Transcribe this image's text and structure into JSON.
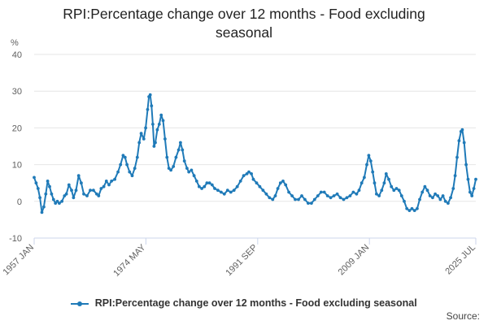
{
  "title": "RPI:Percentage change over 12 months - Food excluding seasonal",
  "source_label": "Source:",
  "colors": {
    "series": "#1f7ab8",
    "grid": "#e6e6e6",
    "axis": "#ccd6eb",
    "text": "#606060"
  },
  "chart_data": {
    "type": "line",
    "title": "RPI:Percentage change over 12 months - Food excluding seasonal",
    "ylabel": "%",
    "xlabel": "",
    "ylim": [
      -10,
      40
    ],
    "yticks": [
      -10,
      0,
      10,
      20,
      30,
      40
    ],
    "xlim": [
      1957.0,
      2025.5
    ],
    "xticks": [
      {
        "label": "1957 JAN",
        "value": 1957.0
      },
      {
        "label": "1974 MAY",
        "value": 1974.33
      },
      {
        "label": "1991 SEP",
        "value": 1991.67
      },
      {
        "label": "2009 JAN",
        "value": 2009.0
      },
      {
        "label": "2025 JUL",
        "value": 2025.5
      }
    ],
    "grid": true,
    "legend": "bottom",
    "series": [
      {
        "name": "RPI:Percentage change over 12 months - Food excluding seasonal",
        "color": "#1f7ab8",
        "points": [
          [
            1957.0,
            6.5
          ],
          [
            1957.3,
            5.0
          ],
          [
            1957.6,
            3.5
          ],
          [
            1957.9,
            1.0
          ],
          [
            1958.2,
            -3.0
          ],
          [
            1958.5,
            -1.5
          ],
          [
            1958.8,
            2.0
          ],
          [
            1959.1,
            5.5
          ],
          [
            1959.4,
            4.0
          ],
          [
            1959.7,
            2.0
          ],
          [
            1960.0,
            0.5
          ],
          [
            1960.3,
            -0.5
          ],
          [
            1960.6,
            0.0
          ],
          [
            1960.9,
            -0.5
          ],
          [
            1961.3,
            0.0
          ],
          [
            1961.7,
            1.5
          ],
          [
            1962.0,
            2.0
          ],
          [
            1962.4,
            4.5
          ],
          [
            1962.8,
            3.0
          ],
          [
            1963.1,
            1.0
          ],
          [
            1963.5,
            3.0
          ],
          [
            1963.9,
            7.0
          ],
          [
            1964.3,
            5.0
          ],
          [
            1964.7,
            2.0
          ],
          [
            1965.2,
            1.5
          ],
          [
            1965.7,
            3.0
          ],
          [
            1966.2,
            3.0
          ],
          [
            1966.7,
            2.0
          ],
          [
            1967.0,
            1.5
          ],
          [
            1967.4,
            3.5
          ],
          [
            1967.8,
            4.0
          ],
          [
            1968.2,
            5.5
          ],
          [
            1968.6,
            4.5
          ],
          [
            1969.0,
            5.5
          ],
          [
            1969.5,
            6.0
          ],
          [
            1970.0,
            8.0
          ],
          [
            1970.4,
            10.0
          ],
          [
            1970.8,
            12.5
          ],
          [
            1971.1,
            12.0
          ],
          [
            1971.4,
            10.0
          ],
          [
            1971.8,
            8.0
          ],
          [
            1972.2,
            7.0
          ],
          [
            1972.6,
            9.0
          ],
          [
            1973.0,
            12.0
          ],
          [
            1973.3,
            16.0
          ],
          [
            1973.6,
            18.5
          ],
          [
            1974.0,
            17.0
          ],
          [
            1974.3,
            20.0
          ],
          [
            1974.6,
            25.0
          ],
          [
            1974.8,
            28.5
          ],
          [
            1975.0,
            29.0
          ],
          [
            1975.2,
            26.0
          ],
          [
            1975.4,
            21.0
          ],
          [
            1975.6,
            15.0
          ],
          [
            1975.8,
            16.0
          ],
          [
            1976.1,
            19.5
          ],
          [
            1976.4,
            21.0
          ],
          [
            1976.7,
            23.5
          ],
          [
            1977.0,
            22.0
          ],
          [
            1977.3,
            17.0
          ],
          [
            1977.6,
            12.0
          ],
          [
            1977.9,
            9.0
          ],
          [
            1978.2,
            8.5
          ],
          [
            1978.6,
            9.5
          ],
          [
            1979.0,
            12.0
          ],
          [
            1979.4,
            14.0
          ],
          [
            1979.7,
            16.0
          ],
          [
            1980.0,
            14.0
          ],
          [
            1980.3,
            11.0
          ],
          [
            1980.7,
            9.0
          ],
          [
            1981.0,
            8.0
          ],
          [
            1981.4,
            8.5
          ],
          [
            1981.8,
            7.0
          ],
          [
            1982.2,
            5.5
          ],
          [
            1982.6,
            4.0
          ],
          [
            1983.0,
            3.5
          ],
          [
            1983.4,
            4.0
          ],
          [
            1983.8,
            5.0
          ],
          [
            1984.2,
            5.0
          ],
          [
            1984.6,
            4.5
          ],
          [
            1985.0,
            3.5
          ],
          [
            1985.5,
            3.0
          ],
          [
            1986.0,
            2.5
          ],
          [
            1986.5,
            2.0
          ],
          [
            1987.0,
            3.0
          ],
          [
            1987.5,
            2.5
          ],
          [
            1988.0,
            3.0
          ],
          [
            1988.5,
            4.0
          ],
          [
            1989.0,
            5.5
          ],
          [
            1989.5,
            7.0
          ],
          [
            1990.0,
            7.5
          ],
          [
            1990.3,
            8.0
          ],
          [
            1990.7,
            7.5
          ],
          [
            1991.0,
            6.0
          ],
          [
            1991.5,
            5.0
          ],
          [
            1992.0,
            4.0
          ],
          [
            1992.5,
            3.0
          ],
          [
            1993.0,
            2.0
          ],
          [
            1993.5,
            1.0
          ],
          [
            1994.0,
            0.5
          ],
          [
            1994.4,
            1.5
          ],
          [
            1994.8,
            3.5
          ],
          [
            1995.2,
            5.0
          ],
          [
            1995.6,
            5.5
          ],
          [
            1996.0,
            4.5
          ],
          [
            1996.5,
            2.5
          ],
          [
            1997.0,
            1.5
          ],
          [
            1997.5,
            0.5
          ],
          [
            1998.0,
            0.5
          ],
          [
            1998.5,
            1.5
          ],
          [
            1999.0,
            0.5
          ],
          [
            1999.5,
            -0.5
          ],
          [
            2000.0,
            -0.5
          ],
          [
            2000.5,
            0.5
          ],
          [
            2001.0,
            1.5
          ],
          [
            2001.5,
            2.5
          ],
          [
            2002.0,
            2.5
          ],
          [
            2002.5,
            1.5
          ],
          [
            2003.0,
            1.0
          ],
          [
            2003.5,
            1.5
          ],
          [
            2004.0,
            2.0
          ],
          [
            2004.5,
            1.0
          ],
          [
            2005.0,
            0.5
          ],
          [
            2005.5,
            1.0
          ],
          [
            2006.0,
            1.5
          ],
          [
            2006.5,
            2.5
          ],
          [
            2007.0,
            2.0
          ],
          [
            2007.4,
            3.0
          ],
          [
            2007.8,
            5.0
          ],
          [
            2008.2,
            6.5
          ],
          [
            2008.6,
            10.0
          ],
          [
            2008.9,
            12.5
          ],
          [
            2009.2,
            11.0
          ],
          [
            2009.5,
            8.0
          ],
          [
            2009.8,
            5.0
          ],
          [
            2010.1,
            2.0
          ],
          [
            2010.5,
            1.5
          ],
          [
            2010.9,
            3.0
          ],
          [
            2011.3,
            5.0
          ],
          [
            2011.6,
            7.5
          ],
          [
            2012.0,
            6.0
          ],
          [
            2012.4,
            4.0
          ],
          [
            2012.8,
            3.0
          ],
          [
            2013.2,
            3.5
          ],
          [
            2013.6,
            3.0
          ],
          [
            2014.0,
            1.5
          ],
          [
            2014.4,
            0.0
          ],
          [
            2014.8,
            -2.0
          ],
          [
            2015.2,
            -2.5
          ],
          [
            2015.6,
            -2.0
          ],
          [
            2016.0,
            -2.5
          ],
          [
            2016.4,
            -2.0
          ],
          [
            2016.8,
            0.5
          ],
          [
            2017.2,
            2.5
          ],
          [
            2017.6,
            4.0
          ],
          [
            2018.0,
            3.0
          ],
          [
            2018.4,
            1.5
          ],
          [
            2018.8,
            1.0
          ],
          [
            2019.2,
            2.0
          ],
          [
            2019.6,
            1.5
          ],
          [
            2020.0,
            0.5
          ],
          [
            2020.4,
            1.5
          ],
          [
            2020.8,
            0.0
          ],
          [
            2021.2,
            -0.5
          ],
          [
            2021.6,
            1.0
          ],
          [
            2022.0,
            3.5
          ],
          [
            2022.3,
            7.0
          ],
          [
            2022.6,
            12.0
          ],
          [
            2022.9,
            16.5
          ],
          [
            2023.2,
            19.0
          ],
          [
            2023.4,
            19.5
          ],
          [
            2023.7,
            16.0
          ],
          [
            2024.0,
            10.0
          ],
          [
            2024.3,
            6.0
          ],
          [
            2024.6,
            2.5
          ],
          [
            2024.9,
            1.5
          ],
          [
            2025.2,
            3.5
          ],
          [
            2025.5,
            6.0
          ]
        ]
      }
    ]
  }
}
